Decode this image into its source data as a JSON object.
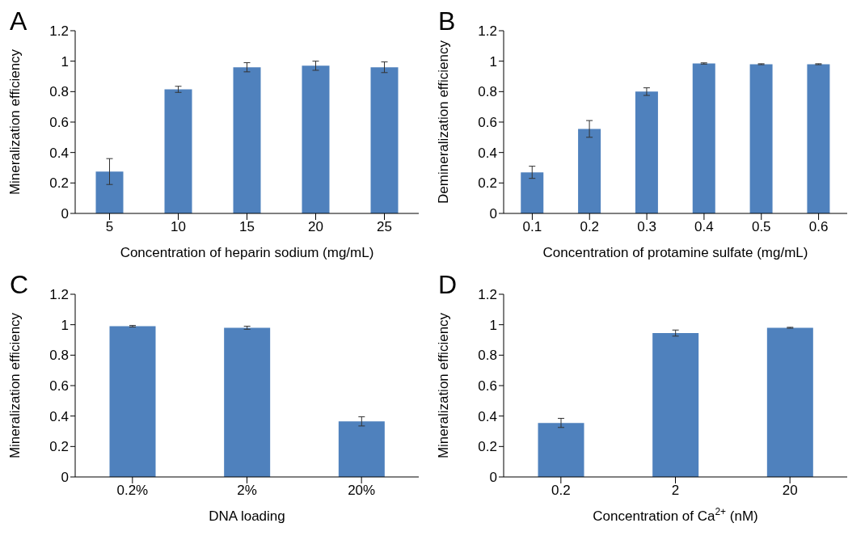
{
  "chart_data": [
    {
      "type": "bar",
      "title": "A",
      "xlabel": "Concentration of heparin sodium (mg/mL)",
      "ylabel": "Mineralization efficiency",
      "categories": [
        "5",
        "10",
        "15",
        "20",
        "25"
      ],
      "values": [
        0.275,
        0.815,
        0.96,
        0.97,
        0.96
      ],
      "errors": [
        0.085,
        0.02,
        0.03,
        0.03,
        0.035
      ],
      "color": "#4f81bd",
      "ylim": [
        0,
        1.2
      ],
      "yticks": [
        0,
        0.2,
        0.4,
        0.6,
        0.8,
        1,
        1.2
      ]
    },
    {
      "type": "bar",
      "title": "B",
      "xlabel": "Concentration of protamine sulfate (mg/mL)",
      "ylabel": "Demineralization efficiency",
      "categories": [
        "0.1",
        "0.2",
        "0.3",
        "0.4",
        "0.5",
        "0.6"
      ],
      "values": [
        0.27,
        0.555,
        0.8,
        0.985,
        0.98,
        0.98
      ],
      "errors": [
        0.04,
        0.055,
        0.025,
        0.004,
        0.003,
        0.003
      ],
      "color": "#4f81bd",
      "ylim": [
        0,
        1.2
      ],
      "yticks": [
        0,
        0.2,
        0.4,
        0.6,
        0.8,
        1,
        1.2
      ]
    },
    {
      "type": "bar",
      "title": "C",
      "xlabel": "DNA loading",
      "ylabel": "Mineralization efficiency",
      "categories": [
        "0.2%",
        "2%",
        "20%"
      ],
      "values": [
        0.99,
        0.98,
        0.365
      ],
      "errors": [
        0.005,
        0.01,
        0.03
      ],
      "color": "#4f81bd",
      "ylim": [
        0,
        1.2
      ],
      "yticks": [
        0,
        0.2,
        0.4,
        0.6,
        0.8,
        1,
        1.2
      ]
    },
    {
      "type": "bar",
      "title": "D",
      "xlabel": "Concentration of Ca$^{2+}$ (nM)",
      "ylabel": "Mineralization efficiency",
      "categories": [
        "0.2",
        "2",
        "20"
      ],
      "values": [
        0.355,
        0.945,
        0.98
      ],
      "errors": [
        0.03,
        0.02,
        0.003
      ],
      "color": "#4f81bd",
      "ylim": [
        0,
        1.2
      ],
      "yticks": [
        0,
        0.2,
        0.4,
        0.6,
        0.8,
        1,
        1.2
      ]
    }
  ]
}
